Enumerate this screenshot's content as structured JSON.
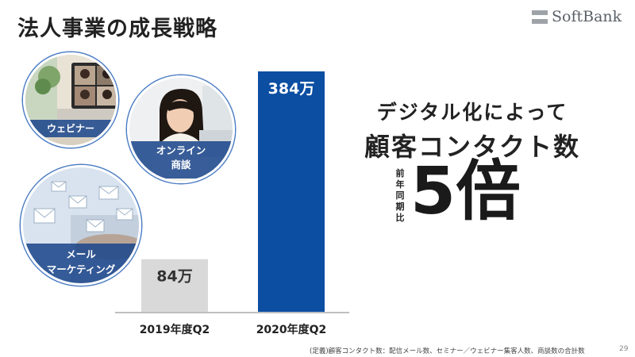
{
  "page": {
    "title": "法人事業の成長戦略",
    "logo_text": "SoftBank",
    "page_number": "29",
    "footnote": "(定義)顧客コンタクト数：配信メール数、セミナー／ウェビナー集客人数、商談数の合計数"
  },
  "photos": {
    "webinar": "ウェビナー",
    "online_meeting": [
      "オンライン",
      "商談"
    ],
    "email_marketing": [
      "メール",
      "マーケティング"
    ]
  },
  "headline": {
    "line1": "デジタル化によって",
    "line2": "顧客コンタクト数",
    "comparison_label": "前年同期比",
    "multiplier": "5倍"
  },
  "colors": {
    "bar_2019": "#d9d9d9",
    "bar_2020": "#0b4ea2",
    "accent_border": "#4c7dc4"
  },
  "chart_data": {
    "type": "bar",
    "categories": [
      "2019年度Q2",
      "2020年度Q2"
    ],
    "values": [
      84,
      384
    ],
    "value_labels": [
      "84万",
      "384万"
    ],
    "unit": "万",
    "ylim": [
      0,
      384
    ],
    "grid": false,
    "legend": "none"
  }
}
